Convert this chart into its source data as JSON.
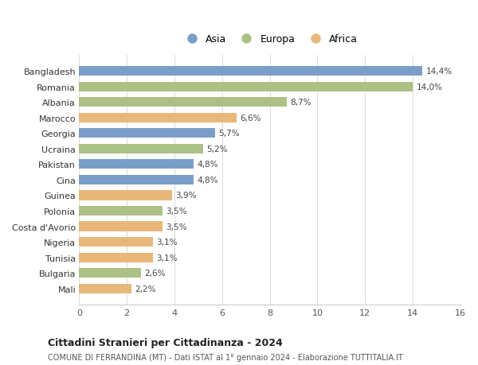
{
  "categories": [
    "Bangladesh",
    "Romania",
    "Albania",
    "Marocco",
    "Georgia",
    "Ucraina",
    "Pakistan",
    "Cina",
    "Guinea",
    "Polonia",
    "Costa d'Avorio",
    "Nigeria",
    "Tunisia",
    "Bulgaria",
    "Mali"
  ],
  "values": [
    14.4,
    14.0,
    8.7,
    6.6,
    5.7,
    5.2,
    4.8,
    4.8,
    3.9,
    3.5,
    3.5,
    3.1,
    3.1,
    2.6,
    2.2
  ],
  "continents": [
    "Asia",
    "Europa",
    "Europa",
    "Africa",
    "Asia",
    "Europa",
    "Asia",
    "Asia",
    "Africa",
    "Europa",
    "Africa",
    "Africa",
    "Africa",
    "Europa",
    "Africa"
  ],
  "colors": {
    "Asia": "#7b9ec9",
    "Europa": "#adc085",
    "Africa": "#e8b87a"
  },
  "labels": [
    "14,4%",
    "14,0%",
    "8,7%",
    "6,6%",
    "5,7%",
    "5,2%",
    "4,8%",
    "4,8%",
    "3,9%",
    "3,5%",
    "3,5%",
    "3,1%",
    "3,1%",
    "2,6%",
    "2,2%"
  ],
  "title": "Cittadini Stranieri per Cittadinanza - 2024",
  "subtitle": "COMUNE DI FERRANDINA (MT) - Dati ISTAT al 1° gennaio 2024 - Elaborazione TUTTITALIA.IT",
  "xlim": [
    0,
    16
  ],
  "xticks": [
    0,
    2,
    4,
    6,
    8,
    10,
    12,
    14,
    16
  ],
  "legend_labels": [
    "Asia",
    "Europa",
    "Africa"
  ],
  "background_color": "#ffffff",
  "grid_color": "#dddddd"
}
